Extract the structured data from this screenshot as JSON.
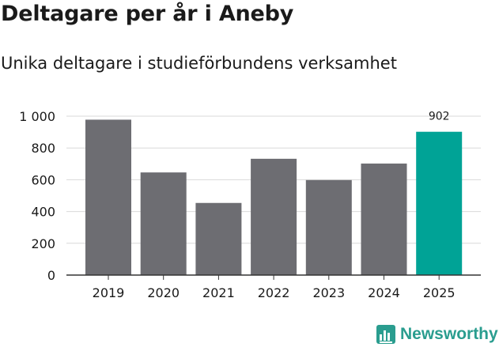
{
  "header": {
    "title": "Deltagare per år i Aneby",
    "subtitle": "Unika deltagare i studieförbundens verksamhet"
  },
  "brand": {
    "name": "Newsworthy",
    "icon": "newsworthy-logo-icon",
    "color": "#2a9d8f"
  },
  "colors": {
    "bar_default": "#6d6d72",
    "bar_highlight": "#00a396",
    "grid": "#d9d9d9",
    "axis": "#333333",
    "text": "#1a1a1a"
  },
  "chart_data": {
    "type": "bar",
    "title": "Deltagare per år i Aneby",
    "subtitle": "Unika deltagare i studieförbundens verksamhet",
    "xlabel": "",
    "ylabel": "",
    "categories": [
      "2019",
      "2020",
      "2021",
      "2022",
      "2023",
      "2024",
      "2025"
    ],
    "values": [
      978,
      646,
      454,
      732,
      598,
      702,
      902
    ],
    "highlight_index": 6,
    "data_labels": [
      {
        "index": 6,
        "text": "902"
      }
    ],
    "ylim": [
      0,
      1000
    ],
    "yticks": [
      0,
      200,
      400,
      600,
      800,
      1000
    ],
    "ytick_labels": [
      "0",
      "200",
      "400",
      "600",
      "800",
      "1 000"
    ],
    "grid": true,
    "legend": "none"
  }
}
